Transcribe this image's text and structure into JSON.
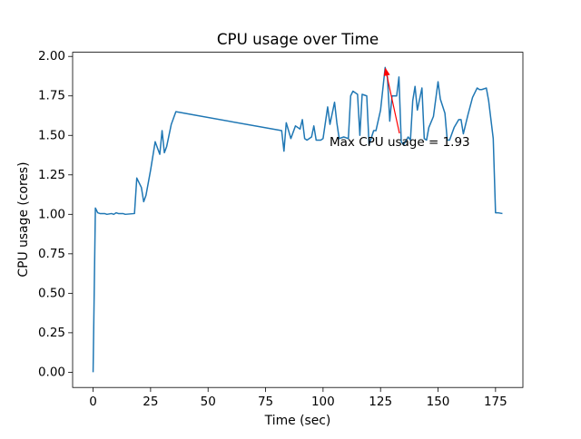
{
  "chart_data": {
    "type": "line",
    "title": "CPU usage over Time",
    "x_label": "Time (sec)",
    "y_label": "CPU usage (cores)",
    "color": "#1f77b4",
    "x": [
      0,
      1,
      2,
      3,
      5,
      6,
      8,
      9,
      10,
      11,
      13,
      14,
      18,
      19,
      21,
      22,
      23,
      25,
      27,
      29,
      30,
      31,
      32,
      34,
      36,
      82,
      83,
      84,
      86,
      88,
      90,
      91,
      92,
      93,
      95,
      96,
      97,
      99,
      100,
      102,
      103,
      105,
      106,
      107,
      109,
      111,
      112,
      113,
      115,
      116,
      117,
      119,
      120,
      122,
      123,
      125,
      127,
      128,
      129,
      130,
      132,
      133,
      134,
      135,
      137,
      138,
      139,
      140,
      141,
      143,
      144,
      145,
      146,
      148,
      150,
      151,
      153,
      154,
      155,
      157,
      159,
      160,
      161,
      163,
      165,
      167,
      168,
      169,
      171,
      172,
      174,
      175,
      176,
      178
    ],
    "values": [
      0,
      1.04,
      1.01,
      1.005,
      1.005,
      1.0,
      1.005,
      1.0,
      1.01,
      1.005,
      1.005,
      1.0,
      1.005,
      1.23,
      1.17,
      1.08,
      1.12,
      1.28,
      1.46,
      1.38,
      1.53,
      1.39,
      1.43,
      1.57,
      1.65,
      1.53,
      1.4,
      1.58,
      1.48,
      1.56,
      1.54,
      1.6,
      1.48,
      1.47,
      1.49,
      1.56,
      1.47,
      1.47,
      1.48,
      1.68,
      1.57,
      1.71,
      1.58,
      1.48,
      1.49,
      1.48,
      1.75,
      1.78,
      1.76,
      1.5,
      1.76,
      1.75,
      1.44,
      1.53,
      1.53,
      1.66,
      1.93,
      1.87,
      1.59,
      1.75,
      1.75,
      1.87,
      1.46,
      1.44,
      1.49,
      1.47,
      1.72,
      1.81,
      1.66,
      1.8,
      1.48,
      1.47,
      1.55,
      1.62,
      1.84,
      1.73,
      1.64,
      1.47,
      1.47,
      1.55,
      1.6,
      1.6,
      1.51,
      1.63,
      1.74,
      1.8,
      1.79,
      1.79,
      1.8,
      1.72,
      1.48,
      1.01,
      1.01,
      1.005
    ],
    "xlim": [
      -8.9,
      186.9
    ],
    "ylim": [
      -0.0965,
      2.0265
    ],
    "xticks": [
      0,
      25,
      50,
      75,
      100,
      125,
      150,
      175
    ],
    "yticks": [
      {
        "value": 0,
        "label": "0.00"
      },
      {
        "value": 0.25,
        "label": "0.25"
      },
      {
        "value": 0.5,
        "label": "0.50"
      },
      {
        "value": 0.75,
        "label": "0.75"
      },
      {
        "value": 1,
        "label": "1.00"
      },
      {
        "value": 1.25,
        "label": "1.25"
      },
      {
        "value": 1.5,
        "label": "1.50"
      },
      {
        "value": 1.75,
        "label": "1.75"
      },
      {
        "value": 2,
        "label": "2.00"
      }
    ],
    "annotation": {
      "text": "Max CPU usage = 1.93",
      "color": "red"
    }
  }
}
